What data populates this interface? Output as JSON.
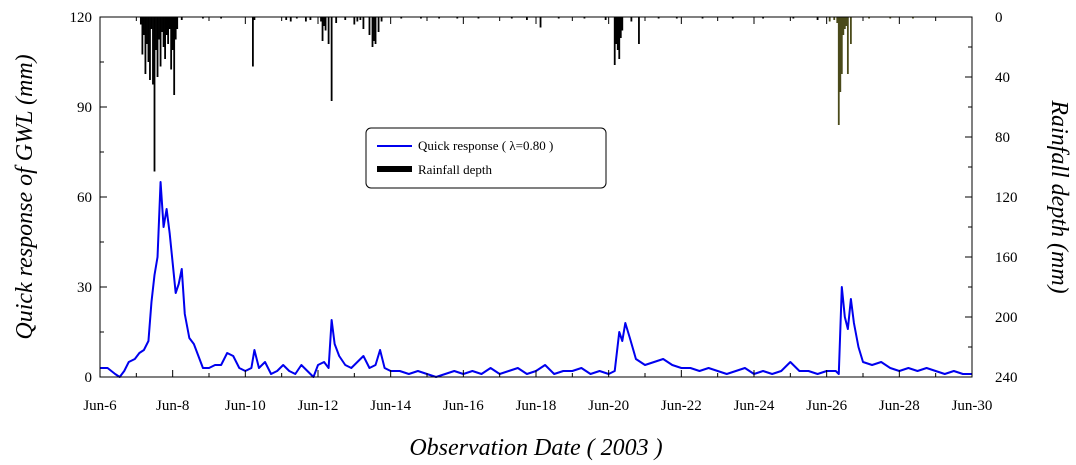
{
  "chart_data": {
    "type": "line",
    "xlabel": "Observation Date ( 2003 )",
    "ylabel_left": "Quick response of GWL (mm)",
    "ylabel_right": "Rainfall depth  (mm)",
    "x_ticks": [
      "Jun-6",
      "Jun-8",
      "Jun-10",
      "Jun-12",
      "Jun-14",
      "Jun-16",
      "Jun-18",
      "Jun-20",
      "Jun-22",
      "Jun-24",
      "Jun-26",
      "Jun-28",
      "Jun-30"
    ],
    "xlim": [
      "2003-06-06",
      "2003-06-30"
    ],
    "ylim_left": [
      0,
      120
    ],
    "y_ticks_left": [
      "0",
      "30",
      "60",
      "90",
      "120"
    ],
    "ylim_right": [
      0,
      240
    ],
    "right_axis_inverted": true,
    "y_ticks_right": [
      "0",
      "40",
      "80",
      "120",
      "160",
      "200",
      "240"
    ],
    "grid": false,
    "legend": {
      "position": "center",
      "entries": [
        "Quick response ( λ=0.80 )",
        "Rainfall depth"
      ]
    },
    "colors": {
      "quick_response": "#0000ee",
      "rainfall": "#000000",
      "rainfall_late": "#4a4a1a"
    },
    "series": [
      {
        "name": "Quick response ( λ=0.80 )",
        "color": "#0000ee",
        "points": [
          [
            "2003-06-06 00:00",
            3
          ],
          [
            "2003-06-06 05:00",
            3
          ],
          [
            "2003-06-06 10:00",
            1
          ],
          [
            "2003-06-06 13:00",
            0
          ],
          [
            "2003-06-06 16:00",
            2
          ],
          [
            "2003-06-06 19:00",
            5
          ],
          [
            "2003-06-06 23:00",
            6
          ],
          [
            "2003-06-07 02:00",
            8
          ],
          [
            "2003-06-07 05:00",
            9
          ],
          [
            "2003-06-07 08:00",
            12
          ],
          [
            "2003-06-07 10:00",
            25
          ],
          [
            "2003-06-07 12:00",
            34
          ],
          [
            "2003-06-07 14:00",
            40
          ],
          [
            "2003-06-07 16:00",
            65
          ],
          [
            "2003-06-07 18:00",
            50
          ],
          [
            "2003-06-07 20:00",
            56
          ],
          [
            "2003-06-07 22:00",
            48
          ],
          [
            "2003-06-08 00:00",
            38
          ],
          [
            "2003-06-08 02:00",
            28
          ],
          [
            "2003-06-08 04:00",
            31
          ],
          [
            "2003-06-08 06:00",
            36
          ],
          [
            "2003-06-08 08:00",
            21
          ],
          [
            "2003-06-08 11:00",
            13
          ],
          [
            "2003-06-08 14:00",
            11
          ],
          [
            "2003-06-08 17:00",
            7
          ],
          [
            "2003-06-08 20:00",
            3
          ],
          [
            "2003-06-09 00:00",
            3
          ],
          [
            "2003-06-09 04:00",
            4
          ],
          [
            "2003-06-09 08:00",
            4
          ],
          [
            "2003-06-09 12:00",
            8
          ],
          [
            "2003-06-09 16:00",
            7
          ],
          [
            "2003-06-09 20:00",
            3
          ],
          [
            "2003-06-10 00:00",
            2
          ],
          [
            "2003-06-10 04:00",
            3
          ],
          [
            "2003-06-10 06:00",
            9
          ],
          [
            "2003-06-10 09:00",
            3
          ],
          [
            "2003-06-10 13:00",
            5
          ],
          [
            "2003-06-10 17:00",
            1
          ],
          [
            "2003-06-10 21:00",
            2
          ],
          [
            "2003-06-11 01:00",
            4
          ],
          [
            "2003-06-11 05:00",
            2
          ],
          [
            "2003-06-11 09:00",
            1
          ],
          [
            "2003-06-11 13:00",
            4
          ],
          [
            "2003-06-11 17:00",
            2
          ],
          [
            "2003-06-11 21:00",
            0
          ],
          [
            "2003-06-12 00:00",
            4
          ],
          [
            "2003-06-12 04:00",
            5
          ],
          [
            "2003-06-12 07:00",
            3
          ],
          [
            "2003-06-12 09:00",
            19
          ],
          [
            "2003-06-12 11:00",
            11
          ],
          [
            "2003-06-12 14:00",
            7
          ],
          [
            "2003-06-12 18:00",
            4
          ],
          [
            "2003-06-12 22:00",
            3
          ],
          [
            "2003-06-13 02:00",
            5
          ],
          [
            "2003-06-13 06:00",
            7
          ],
          [
            "2003-06-13 10:00",
            3
          ],
          [
            "2003-06-13 14:00",
            4
          ],
          [
            "2003-06-13 17:00",
            9
          ],
          [
            "2003-06-13 20:00",
            3
          ],
          [
            "2003-06-14 00:00",
            2
          ],
          [
            "2003-06-14 06:00",
            2
          ],
          [
            "2003-06-14 12:00",
            1
          ],
          [
            "2003-06-14 18:00",
            2
          ],
          [
            "2003-06-15 00:00",
            1
          ],
          [
            "2003-06-15 06:00",
            0
          ],
          [
            "2003-06-15 12:00",
            1
          ],
          [
            "2003-06-15 18:00",
            2
          ],
          [
            "2003-06-16 00:00",
            1
          ],
          [
            "2003-06-16 06:00",
            2
          ],
          [
            "2003-06-16 12:00",
            1
          ],
          [
            "2003-06-16 18:00",
            3
          ],
          [
            "2003-06-17 00:00",
            1
          ],
          [
            "2003-06-17 06:00",
            2
          ],
          [
            "2003-06-17 12:00",
            3
          ],
          [
            "2003-06-17 18:00",
            1
          ],
          [
            "2003-06-18 00:00",
            2
          ],
          [
            "2003-06-18 06:00",
            4
          ],
          [
            "2003-06-18 12:00",
            1
          ],
          [
            "2003-06-18 18:00",
            2
          ],
          [
            "2003-06-19 00:00",
            2
          ],
          [
            "2003-06-19 06:00",
            3
          ],
          [
            "2003-06-19 12:00",
            1
          ],
          [
            "2003-06-19 18:00",
            2
          ],
          [
            "2003-06-20 00:00",
            1
          ],
          [
            "2003-06-20 04:00",
            2
          ],
          [
            "2003-06-20 07:00",
            15
          ],
          [
            "2003-06-20 09:00",
            12
          ],
          [
            "2003-06-20 11:00",
            18
          ],
          [
            "2003-06-20 14:00",
            13
          ],
          [
            "2003-06-20 18:00",
            6
          ],
          [
            "2003-06-21 00:00",
            4
          ],
          [
            "2003-06-21 06:00",
            5
          ],
          [
            "2003-06-21 12:00",
            6
          ],
          [
            "2003-06-21 18:00",
            4
          ],
          [
            "2003-06-22 00:00",
            3
          ],
          [
            "2003-06-22 06:00",
            3
          ],
          [
            "2003-06-22 12:00",
            2
          ],
          [
            "2003-06-22 18:00",
            3
          ],
          [
            "2003-06-23 00:00",
            2
          ],
          [
            "2003-06-23 06:00",
            1
          ],
          [
            "2003-06-23 12:00",
            2
          ],
          [
            "2003-06-23 18:00",
            3
          ],
          [
            "2003-06-24 00:00",
            1
          ],
          [
            "2003-06-24 06:00",
            2
          ],
          [
            "2003-06-24 12:00",
            1
          ],
          [
            "2003-06-24 18:00",
            2
          ],
          [
            "2003-06-25 00:00",
            5
          ],
          [
            "2003-06-25 06:00",
            2
          ],
          [
            "2003-06-25 12:00",
            2
          ],
          [
            "2003-06-25 18:00",
            1
          ],
          [
            "2003-06-26 00:00",
            2
          ],
          [
            "2003-06-26 06:00",
            2
          ],
          [
            "2003-06-26 08:00",
            1
          ],
          [
            "2003-06-26 10:00",
            30
          ],
          [
            "2003-06-26 12:00",
            20
          ],
          [
            "2003-06-26 14:00",
            16
          ],
          [
            "2003-06-26 16:00",
            26
          ],
          [
            "2003-06-26 18:00",
            18
          ],
          [
            "2003-06-26 21:00",
            10
          ],
          [
            "2003-06-27 00:00",
            5
          ],
          [
            "2003-06-27 06:00",
            4
          ],
          [
            "2003-06-27 12:00",
            5
          ],
          [
            "2003-06-27 18:00",
            3
          ],
          [
            "2003-06-28 00:00",
            2
          ],
          [
            "2003-06-28 06:00",
            3
          ],
          [
            "2003-06-28 12:00",
            2
          ],
          [
            "2003-06-28 18:00",
            3
          ],
          [
            "2003-06-29 00:00",
            2
          ],
          [
            "2003-06-29 06:00",
            1
          ],
          [
            "2003-06-29 12:00",
            2
          ],
          [
            "2003-06-29 18:00",
            1
          ],
          [
            "2003-06-30 00:00",
            1
          ]
        ]
      },
      {
        "name": "Rainfall depth",
        "type": "bar",
        "color": "#000000",
        "points": [
          [
            "2003-06-07 03:00",
            5
          ],
          [
            "2003-06-07 04:00",
            25
          ],
          [
            "2003-06-07 05:00",
            12
          ],
          [
            "2003-06-07 06:00",
            38
          ],
          [
            "2003-06-07 07:00",
            18
          ],
          [
            "2003-06-07 08:00",
            30
          ],
          [
            "2003-06-07 09:00",
            42
          ],
          [
            "2003-06-07 10:00",
            8
          ],
          [
            "2003-06-07 11:00",
            45
          ],
          [
            "2003-06-07 12:00",
            103
          ],
          [
            "2003-06-07 13:00",
            22
          ],
          [
            "2003-06-07 14:00",
            40
          ],
          [
            "2003-06-07 15:00",
            15
          ],
          [
            "2003-06-07 16:00",
            33
          ],
          [
            "2003-06-07 17:00",
            10
          ],
          [
            "2003-06-07 18:00",
            20
          ],
          [
            "2003-06-07 19:00",
            28
          ],
          [
            "2003-06-07 20:00",
            12
          ],
          [
            "2003-06-07 21:00",
            18
          ],
          [
            "2003-06-07 22:00",
            8
          ],
          [
            "2003-06-07 23:00",
            35
          ],
          [
            "2003-06-08 00:00",
            22
          ],
          [
            "2003-06-08 01:00",
            52
          ],
          [
            "2003-06-08 02:00",
            15
          ],
          [
            "2003-06-08 03:00",
            8
          ],
          [
            "2003-06-08 06:00",
            2
          ],
          [
            "2003-06-08 20:00",
            1
          ],
          [
            "2003-06-09 08:00",
            1
          ],
          [
            "2003-06-10 05:00",
            33
          ],
          [
            "2003-06-10 06:00",
            2
          ],
          [
            "2003-06-11 03:00",
            2
          ],
          [
            "2003-06-11 06:00",
            3
          ],
          [
            "2003-06-11 10:00",
            1
          ],
          [
            "2003-06-11 16:00",
            3
          ],
          [
            "2003-06-11 19:00",
            2
          ],
          [
            "2003-06-12 02:00",
            3
          ],
          [
            "2003-06-12 03:00",
            16
          ],
          [
            "2003-06-12 04:00",
            6
          ],
          [
            "2003-06-12 05:00",
            9
          ],
          [
            "2003-06-12 07:00",
            18
          ],
          [
            "2003-06-12 09:00",
            56
          ],
          [
            "2003-06-12 12:00",
            4
          ],
          [
            "2003-06-12 18:00",
            2
          ],
          [
            "2003-06-13 00:00",
            5
          ],
          [
            "2003-06-13 02:00",
            3
          ],
          [
            "2003-06-13 04:00",
            2
          ],
          [
            "2003-06-13 06:00",
            8
          ],
          [
            "2003-06-13 10:00",
            12
          ],
          [
            "2003-06-13 12:00",
            20
          ],
          [
            "2003-06-13 13:00",
            16
          ],
          [
            "2003-06-13 14:00",
            18
          ],
          [
            "2003-06-13 16:00",
            10
          ],
          [
            "2003-06-13 18:00",
            3
          ],
          [
            "2003-06-14 07:00",
            1
          ],
          [
            "2003-06-14 20:00",
            1
          ],
          [
            "2003-06-15 08:00",
            1
          ],
          [
            "2003-06-15 20:00",
            1
          ],
          [
            "2003-06-16 10:00",
            1
          ],
          [
            "2003-06-17 08:00",
            1
          ],
          [
            "2003-06-17 18:00",
            2
          ],
          [
            "2003-06-18 03:00",
            7
          ],
          [
            "2003-06-18 15:00",
            1
          ],
          [
            "2003-06-19 08:00",
            1
          ],
          [
            "2003-06-19 22:00",
            2
          ],
          [
            "2003-06-20 04:00",
            32
          ],
          [
            "2003-06-20 05:00",
            18
          ],
          [
            "2003-06-20 06:00",
            22
          ],
          [
            "2003-06-20 07:00",
            28
          ],
          [
            "2003-06-20 08:00",
            14
          ],
          [
            "2003-06-20 09:00",
            9
          ],
          [
            "2003-06-20 15:00",
            3
          ],
          [
            "2003-06-20 20:00",
            18
          ],
          [
            "2003-06-21 09:00",
            1
          ],
          [
            "2003-06-21 21:00",
            1
          ],
          [
            "2003-06-22 14:00",
            1
          ],
          [
            "2003-06-23 10:00",
            1
          ],
          [
            "2003-06-24 06:00",
            1
          ],
          [
            "2003-06-25 02:00",
            1
          ],
          [
            "2003-06-25 18:00",
            2
          ],
          [
            "2003-06-26 02:00",
            3
          ],
          [
            "2003-06-26 05:00",
            2
          ],
          [
            "2003-06-26 07:00",
            4
          ],
          [
            "2003-06-26 08:00",
            72
          ],
          [
            "2003-06-26 09:00",
            50
          ],
          [
            "2003-06-26 10:00",
            38
          ],
          [
            "2003-06-26 11:00",
            12
          ],
          [
            "2003-06-26 12:00",
            8
          ],
          [
            "2003-06-26 13:00",
            6
          ],
          [
            "2003-06-26 14:00",
            38
          ],
          [
            "2003-06-26 16:00",
            18
          ],
          [
            "2003-06-27 04:00",
            1
          ],
          [
            "2003-06-27 18:00",
            1
          ],
          [
            "2003-06-28 09:00",
            1
          ]
        ]
      }
    ]
  }
}
